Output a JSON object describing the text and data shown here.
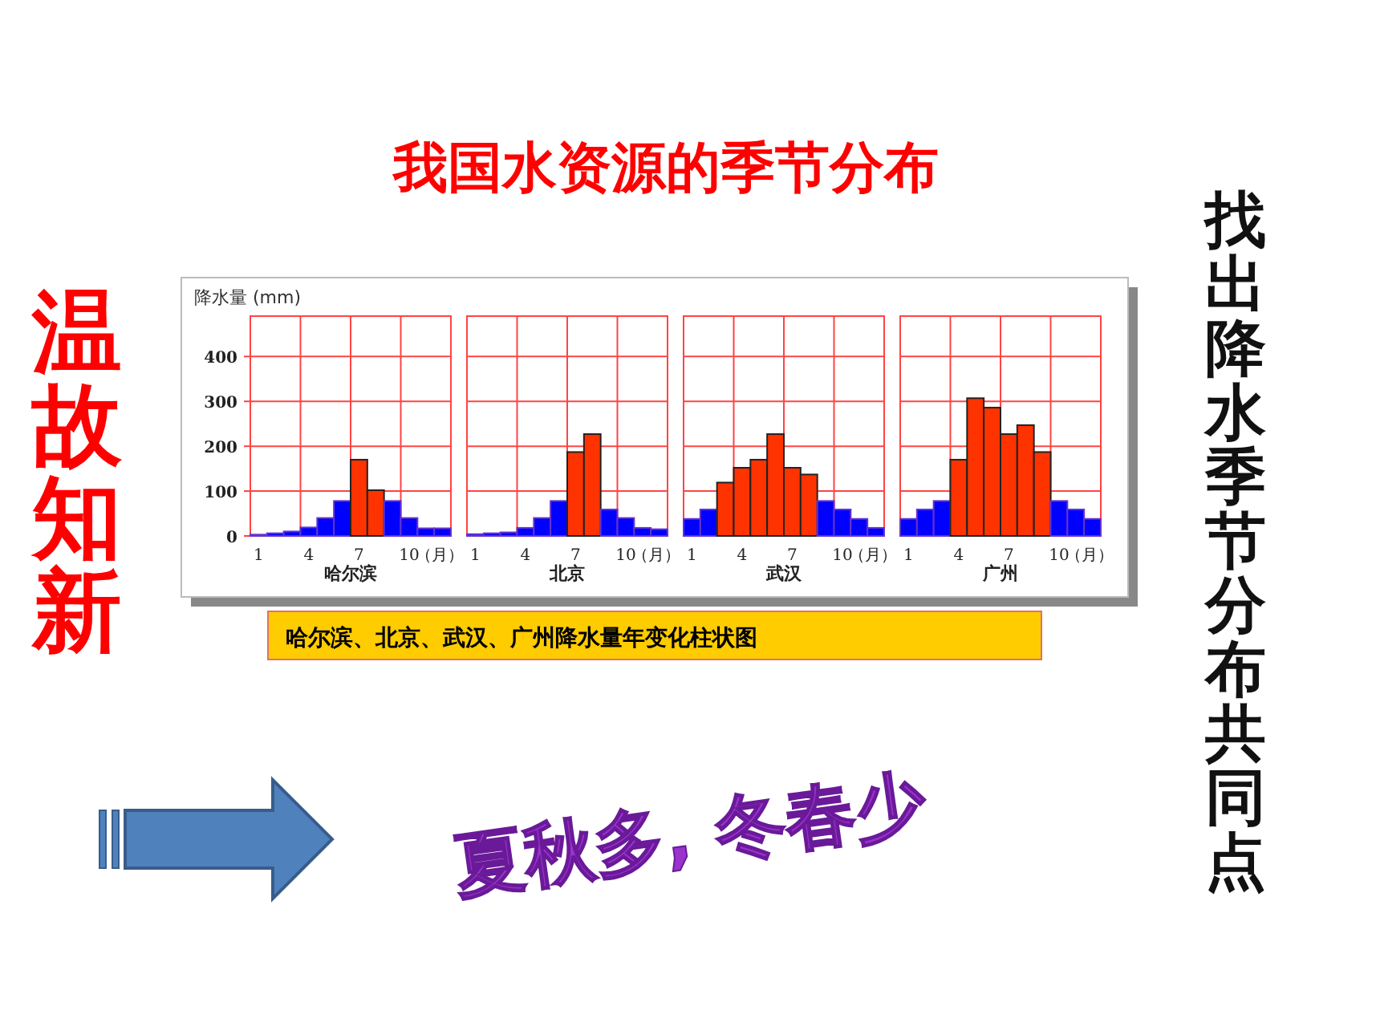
{
  "chart_data": [
    {
      "type": "bar",
      "title": "我国水资源的季节分布",
      "ylabel": "降水量 (mm)",
      "xlabel": "哈尔滨",
      "categories": [
        "1",
        null,
        null,
        "4",
        null,
        null,
        "7",
        null,
        null,
        "10",
        null,
        null
      ],
      "ylim": [
        0,
        490
      ],
      "yticks": [
        0,
        100,
        200,
        300,
        400
      ],
      "grid": true,
      "values": [
        3,
        6,
        10,
        19,
        40,
        78,
        170,
        102,
        78,
        40,
        17,
        17
      ],
      "colors": [
        "#0000ff",
        "#0000ff",
        "#0000ff",
        "#0000ff",
        "#0000ff",
        "#0000ff",
        "#ff3300",
        "#ff3300",
        "#0000ff",
        "#0000ff",
        "#0000ff",
        "#0000ff"
      ],
      "annotations": [
        "（月）",
        "哈尔滨、北京、武汉、广州降水量年变化柱状图",
        "温故知新",
        "找出降水季节分布共同点",
        "夏秋多, 冬春少"
      ]
    },
    {
      "type": "bar",
      "xlabel": "北京",
      "categories": [
        "1",
        null,
        null,
        "4",
        null,
        null,
        "7",
        null,
        null,
        "10",
        null,
        null
      ],
      "ylim": [
        0,
        490
      ],
      "yticks": [
        0,
        100,
        200,
        300,
        400
      ],
      "grid": true,
      "tick_labels": "x",
      "values": [
        4,
        6,
        8,
        18,
        40,
        78,
        187,
        227,
        59,
        40,
        18,
        15
      ],
      "colors": [
        "#0000ff",
        "#0000ff",
        "#0000ff",
        "#0000ff",
        "#0000ff",
        "#0000ff",
        "#ff3300",
        "#ff3300",
        "#0000ff",
        "#0000ff",
        "#0000ff",
        "#0000ff"
      ],
      "annotations": [
        "（月）"
      ]
    },
    {
      "type": "bar",
      "xlabel": "武汉",
      "categories": [
        "1",
        null,
        null,
        "4",
        null,
        null,
        "7",
        null,
        null,
        "10",
        null,
        null
      ],
      "ylim": [
        0,
        490
      ],
      "yticks": [
        0,
        100,
        200,
        300,
        400
      ],
      "grid": true,
      "tick_labels": "x",
      "values": [
        38,
        59,
        119,
        152,
        170,
        227,
        152,
        137,
        78,
        59,
        38,
        18
      ],
      "colors": [
        "#0000ff",
        "#0000ff",
        "#ff3300",
        "#ff3300",
        "#ff3300",
        "#ff3300",
        "#ff3300",
        "#ff3300",
        "#0000ff",
        "#0000ff",
        "#0000ff",
        "#0000ff"
      ],
      "annotations": [
        "（月）"
      ]
    },
    {
      "type": "bar",
      "xlabel": "广州",
      "categories": [
        "1",
        null,
        null,
        "4",
        null,
        null,
        "7",
        null,
        null,
        "10",
        null,
        null
      ],
      "ylim": [
        0,
        490
      ],
      "yticks": [
        0,
        100,
        200,
        300,
        400
      ],
      "grid": true,
      "tick_labels": "x",
      "values": [
        38,
        59,
        78,
        170,
        307,
        286,
        227,
        247,
        187,
        78,
        59,
        38
      ],
      "colors": [
        "#0000ff",
        "#0000ff",
        "#0000ff",
        "#ff3300",
        "#ff3300",
        "#ff3300",
        "#ff3300",
        "#ff3300",
        "#ff3300",
        "#0000ff",
        "#0000ff",
        "#0000ff"
      ],
      "annotations": [
        "（月）"
      ]
    }
  ]
}
